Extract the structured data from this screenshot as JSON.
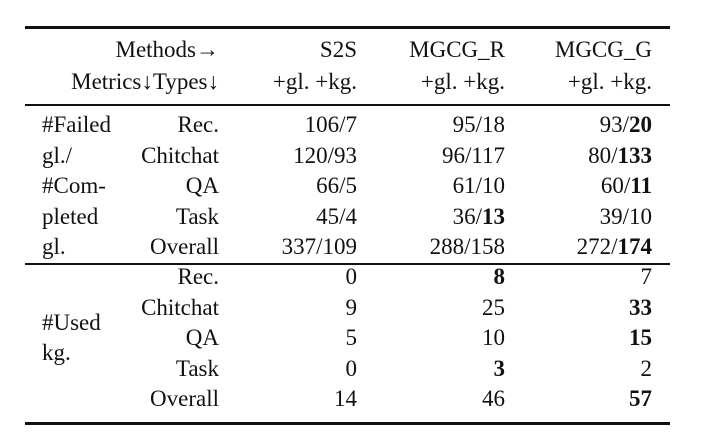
{
  "header": {
    "row1": [
      "Methods→",
      "S2S",
      "MGCG_R",
      "MGCG_G"
    ],
    "row2": [
      "Metrics↓Types↓",
      "+gl. +kg.",
      "+gl. +kg.",
      "+gl. +kg."
    ]
  },
  "groups": [
    {
      "label": [
        "#Failed",
        "gl./",
        "#Com-",
        "pleted",
        "gl."
      ],
      "rows": [
        {
          "type": "Rec.",
          "cells": [
            "106/7",
            "95/18",
            [
              "93/",
              {
                "bold": "20"
              }
            ]
          ]
        },
        {
          "type": "Chitchat",
          "cells": [
            "120/93",
            "96/117",
            [
              "80/",
              {
                "bold": "133"
              }
            ]
          ]
        },
        {
          "type": "QA",
          "cells": [
            "66/5",
            "61/10",
            [
              "60/",
              {
                "bold": "11"
              }
            ]
          ]
        },
        {
          "type": "Task",
          "cells": [
            "45/4",
            [
              "36/",
              {
                "bold": "13"
              }
            ],
            "39/10"
          ]
        },
        {
          "type": "Overall",
          "cells": [
            "337/109",
            "288/158",
            [
              "272/",
              {
                "bold": "174"
              }
            ]
          ]
        }
      ]
    },
    {
      "label": [
        "#Used",
        "kg."
      ],
      "rows": [
        {
          "type": "Rec.",
          "cells": [
            "0",
            {
              "bold": "8"
            },
            "7"
          ]
        },
        {
          "type": "Chitchat",
          "cells": [
            "9",
            "25",
            {
              "bold": "33"
            }
          ]
        },
        {
          "type": "QA",
          "cells": [
            "5",
            "10",
            {
              "bold": "15"
            }
          ]
        },
        {
          "type": "Task",
          "cells": [
            "0",
            {
              "bold": "3"
            },
            "2"
          ]
        },
        {
          "type": "Overall",
          "cells": [
            "14",
            "46",
            {
              "bold": "57"
            }
          ]
        }
      ]
    }
  ]
}
